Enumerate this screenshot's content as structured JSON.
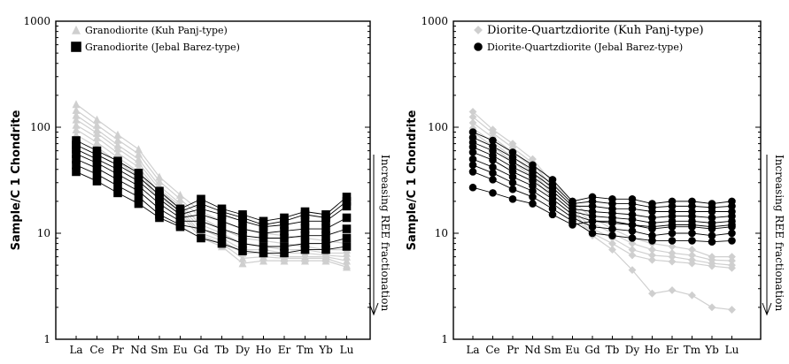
{
  "chart_data": [
    {
      "type": "line",
      "scale": "log",
      "ylabel": "Sample/C 1 Chondrite",
      "ylim": [
        1,
        1000
      ],
      "y_ticks": [
        "1",
        "10",
        "100",
        "1000"
      ],
      "categories": [
        "La",
        "Ce",
        "Pr",
        "Nd",
        "Sm",
        "Eu",
        "Gd",
        "Tb",
        "Dy",
        "Ho",
        "Er",
        "Tm",
        "Yb",
        "Lu"
      ],
      "annotation": "Increasing REE fractionation",
      "legend": [
        "Granodiorite (Kuh Panj-type)",
        "Granodiorite (Jebal Barez-type)"
      ],
      "colors": {
        "kuh": "#cfcfcf",
        "jebal": "#000000"
      },
      "series": [
        {
          "group": "kuh",
          "values": [
            165,
            118,
            85,
            62,
            34,
            23,
            16,
            13,
            11,
            10,
            9.5,
            9,
            8.5,
            8
          ]
        },
        {
          "group": "kuh",
          "values": [
            145,
            105,
            76,
            56,
            31,
            21,
            14,
            11,
            9,
            8.5,
            8,
            7.5,
            7,
            7
          ]
        },
        {
          "group": "kuh",
          "values": [
            130,
            95,
            68,
            50,
            28,
            19,
            12,
            10,
            8,
            7.5,
            7,
            7,
            6.5,
            6.5
          ]
        },
        {
          "group": "kuh",
          "values": [
            118,
            88,
            63,
            46,
            26,
            18,
            11,
            9,
            7,
            7,
            6.5,
            6.5,
            6.2,
            6
          ]
        },
        {
          "group": "kuh",
          "values": [
            105,
            80,
            57,
            42,
            24,
            17,
            10,
            8.5,
            6.5,
            6.5,
            6,
            6,
            6,
            5.5
          ]
        },
        {
          "group": "kuh",
          "values": [
            95,
            72,
            52,
            38,
            22,
            16,
            9.5,
            8,
            5.8,
            6,
            5.8,
            5.8,
            5.8,
            5
          ]
        },
        {
          "group": "kuh",
          "values": [
            85,
            65,
            47,
            35,
            21,
            15,
            9,
            7.5,
            5.2,
            5.5,
            5.5,
            5.5,
            5.5,
            4.8
          ]
        },
        {
          "group": "jebal",
          "values": [
            75,
            60,
            48,
            37,
            25,
            17,
            21,
            17,
            15,
            13,
            14,
            16,
            15,
            22
          ]
        },
        {
          "group": "jebal",
          "values": [
            68,
            55,
            44,
            34,
            23,
            16,
            19,
            16,
            14,
            12,
            13,
            15,
            14,
            20
          ]
        },
        {
          "group": "jebal",
          "values": [
            62,
            50,
            40,
            31,
            21,
            15,
            17,
            15,
            13,
            11.5,
            12,
            13,
            13,
            18
          ]
        },
        {
          "group": "jebal",
          "values": [
            56,
            46,
            36,
            28,
            19,
            14,
            15,
            13,
            11,
            10,
            10.5,
            11,
            11,
            14
          ]
        },
        {
          "group": "jebal",
          "values": [
            50,
            41,
            32,
            25,
            17,
            13,
            13,
            11,
            9.5,
            9,
            9,
            9.5,
            9.5,
            11
          ]
        },
        {
          "group": "jebal",
          "values": [
            44,
            36,
            28,
            22,
            15,
            12,
            11,
            9.5,
            8,
            7.5,
            7.5,
            8,
            8,
            9
          ]
        },
        {
          "group": "jebal",
          "values": [
            38,
            31,
            24,
            19,
            14,
            11.5,
            9,
            8,
            6.8,
            6.5,
            6.5,
            7,
            7,
            7.5
          ]
        }
      ]
    },
    {
      "type": "line",
      "scale": "log",
      "ylabel": "Sample/C 1 Chondrite",
      "ylim": [
        1,
        1000
      ],
      "y_ticks": [
        "1",
        "10",
        "100",
        "1000"
      ],
      "categories": [
        "La",
        "Ce",
        "Pr",
        "Nd",
        "Sm",
        "Eu",
        "Gd",
        "Tb",
        "Dy",
        "Ho",
        "Er",
        "Tm",
        "Yb",
        "Lu"
      ],
      "annotation": "Increasing REE fractionation",
      "legend": [
        "Diorite-Quartzdiorite (Kuh Panj-type)",
        "Diorite-Quartzdiorite (Jebal Barez-type)"
      ],
      "colors": {
        "kuh": "#cfcfcf",
        "jebal": "#000000"
      },
      "series": [
        {
          "group": "kuh",
          "values": [
            140,
            95,
            70,
            50,
            30,
            20,
            14,
            11,
            9,
            8,
            7.5,
            7,
            6,
            6
          ]
        },
        {
          "group": "kuh",
          "values": [
            125,
            88,
            64,
            46,
            27,
            18,
            12.5,
            10,
            8,
            7,
            6.5,
            6.2,
            5.6,
            5.5
          ]
        },
        {
          "group": "kuh",
          "values": [
            110,
            80,
            58,
            42,
            25,
            17,
            11,
            9,
            7,
            6.2,
            6,
            5.6,
            5.2,
            5
          ]
        },
        {
          "group": "kuh",
          "values": [
            98,
            72,
            52,
            38,
            23,
            16,
            10,
            8,
            6.2,
            5.6,
            5.4,
            5.2,
            4.9,
            4.7
          ]
        },
        {
          "group": "kuh",
          "values": [
            90,
            66,
            47,
            34,
            21,
            15,
            9.5,
            7,
            4.5,
            2.7,
            2.9,
            2.6,
            2,
            1.9
          ]
        },
        {
          "group": "jebal",
          "values": [
            90,
            75,
            58,
            44,
            32,
            20,
            22,
            21,
            21,
            19,
            20,
            20,
            19,
            20
          ]
        },
        {
          "group": "jebal",
          "values": [
            80,
            66,
            52,
            40,
            29,
            19,
            20,
            19,
            19,
            17.5,
            18,
            18,
            17.5,
            18
          ]
        },
        {
          "group": "jebal",
          "values": [
            72,
            60,
            47,
            37,
            27,
            18,
            18,
            17,
            17,
            16,
            16,
            16,
            16,
            16
          ]
        },
        {
          "group": "jebal",
          "values": [
            65,
            54,
            42,
            34,
            25,
            17,
            16,
            15.5,
            15,
            14,
            14.5,
            14.5,
            14,
            14.5
          ]
        },
        {
          "group": "jebal",
          "values": [
            58,
            49,
            38,
            31,
            23,
            16,
            14.5,
            14,
            13.5,
            12.5,
            13,
            13,
            12.5,
            13
          ]
        },
        {
          "group": "jebal",
          "values": [
            50,
            42,
            34,
            28,
            21,
            15,
            13,
            12.5,
            12,
            11,
            11.5,
            11.5,
            11,
            11.5
          ]
        },
        {
          "group": "jebal",
          "values": [
            44,
            37,
            30,
            25,
            19,
            14,
            11.5,
            11,
            10.5,
            9.5,
            10,
            10,
            9.5,
            10
          ]
        },
        {
          "group": "jebal",
          "values": [
            38,
            32,
            26,
            22,
            17,
            13,
            10,
            9.5,
            9,
            8.5,
            8.5,
            8.5,
            8.3,
            8.5
          ]
        },
        {
          "group": "jebal",
          "values": [
            27,
            24,
            21,
            19,
            15,
            12,
            13,
            13,
            12,
            11.5,
            12,
            12,
            11.5,
            12
          ]
        }
      ]
    }
  ]
}
